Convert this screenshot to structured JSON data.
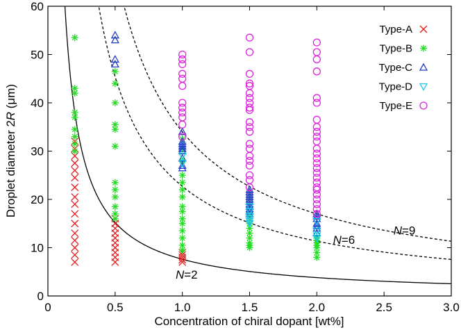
{
  "chart_data": {
    "type": "scatter",
    "title": "",
    "xlabel": "Concentration of chiral dopant [wt%]",
    "ylabel_parts": [
      "Droplet diameter 2",
      "R",
      " (μm)"
    ],
    "xlim": [
      0,
      3.0
    ],
    "ylim": [
      0,
      60
    ],
    "xticks": [
      0,
      0.5,
      1.0,
      1.5,
      2.0,
      2.5,
      3.0
    ],
    "xtick_labels": [
      "0",
      "0.5",
      "1.0",
      "1.5",
      "2.0",
      "2.5",
      "3.0"
    ],
    "yticks": [
      0,
      10,
      20,
      30,
      40,
      50,
      60
    ],
    "ytick_labels": [
      "0",
      "10",
      "20",
      "30",
      "40",
      "50",
      "60"
    ],
    "legend_position": "top-right",
    "series": [
      {
        "name": "Type-A",
        "marker": "x",
        "color": "#e41a1c",
        "points": [
          [
            0.2,
            7
          ],
          [
            0.2,
            8.5
          ],
          [
            0.2,
            10
          ],
          [
            0.2,
            11.5
          ],
          [
            0.2,
            13
          ],
          [
            0.2,
            15
          ],
          [
            0.2,
            17
          ],
          [
            0.2,
            19
          ],
          [
            0.2,
            20.5
          ],
          [
            0.2,
            22.5
          ],
          [
            0.2,
            24.5
          ],
          [
            0.2,
            26
          ],
          [
            0.2,
            27.5
          ],
          [
            0.2,
            29
          ],
          [
            0.2,
            30.5
          ],
          [
            0.2,
            32
          ],
          [
            0.5,
            7
          ],
          [
            0.5,
            8
          ],
          [
            0.5,
            9
          ],
          [
            0.5,
            10
          ],
          [
            0.5,
            11
          ],
          [
            0.5,
            12
          ],
          [
            0.5,
            13
          ],
          [
            0.5,
            14
          ],
          [
            0.5,
            15
          ],
          [
            0.5,
            16
          ],
          [
            1.0,
            7
          ],
          [
            1.0,
            7.5
          ],
          [
            1.0,
            8
          ],
          [
            1.0,
            8.5
          ],
          [
            1.0,
            9
          ]
        ]
      },
      {
        "name": "Type-B",
        "marker": "asterisk",
        "color": "#22dd22",
        "points": [
          [
            0.2,
            30
          ],
          [
            0.2,
            31.5
          ],
          [
            0.2,
            33
          ],
          [
            0.2,
            34.5
          ],
          [
            0.2,
            37
          ],
          [
            0.2,
            38
          ],
          [
            0.2,
            42
          ],
          [
            0.2,
            43
          ],
          [
            0.2,
            53.5
          ],
          [
            0.5,
            16
          ],
          [
            0.5,
            17
          ],
          [
            0.5,
            18.5
          ],
          [
            0.5,
            20.5
          ],
          [
            0.5,
            22
          ],
          [
            0.5,
            23.5
          ],
          [
            0.5,
            31
          ],
          [
            0.5,
            34.5
          ],
          [
            0.5,
            35.5
          ],
          [
            0.5,
            40
          ],
          [
            0.5,
            44
          ],
          [
            0.5,
            46.5
          ],
          [
            1.0,
            9.5
          ],
          [
            1.0,
            10.5
          ],
          [
            1.0,
            12
          ],
          [
            1.0,
            13.5
          ],
          [
            1.0,
            15
          ],
          [
            1.0,
            16
          ],
          [
            1.0,
            17.5
          ],
          [
            1.0,
            18.5
          ],
          [
            1.0,
            20.5
          ],
          [
            1.0,
            22
          ],
          [
            1.0,
            23.5
          ],
          [
            1.0,
            25
          ],
          [
            1.0,
            28
          ],
          [
            1.0,
            30.5
          ],
          [
            1.0,
            32.5
          ],
          [
            1.5,
            10
          ],
          [
            1.5,
            10.5
          ],
          [
            1.5,
            11
          ],
          [
            1.5,
            12
          ],
          [
            1.5,
            13
          ],
          [
            1.5,
            14
          ],
          [
            1.5,
            15
          ],
          [
            1.5,
            16
          ],
          [
            1.5,
            17
          ],
          [
            2.0,
            8
          ],
          [
            2.0,
            9
          ],
          [
            2.0,
            10
          ],
          [
            2.0,
            10.5
          ],
          [
            2.0,
            11
          ],
          [
            2.0,
            11.5
          ],
          [
            2.0,
            12
          ]
        ]
      },
      {
        "name": "Type-C",
        "marker": "triangle-up",
        "color": "#1f3fc4",
        "points": [
          [
            0.5,
            48
          ],
          [
            0.5,
            49
          ],
          [
            0.5,
            53
          ],
          [
            0.5,
            54
          ],
          [
            1.0,
            26.5
          ],
          [
            1.0,
            27
          ],
          [
            1.0,
            28.5
          ],
          [
            1.0,
            30
          ],
          [
            1.0,
            30.5
          ],
          [
            1.0,
            31
          ],
          [
            1.0,
            31.5
          ],
          [
            1.0,
            32
          ],
          [
            1.0,
            34
          ],
          [
            1.5,
            17
          ],
          [
            1.5,
            17.5
          ],
          [
            1.5,
            18
          ],
          [
            1.5,
            18.5
          ],
          [
            1.5,
            19
          ],
          [
            1.5,
            19.5
          ],
          [
            1.5,
            20
          ],
          [
            1.5,
            20.5
          ],
          [
            1.5,
            21
          ],
          [
            1.5,
            21.5
          ],
          [
            1.5,
            22
          ],
          [
            2.0,
            13
          ],
          [
            2.0,
            14
          ],
          [
            2.0,
            14.5
          ],
          [
            2.0,
            15
          ],
          [
            2.0,
            16
          ],
          [
            2.0,
            16.5
          ],
          [
            2.0,
            17
          ]
        ]
      },
      {
        "name": "Type-D",
        "marker": "triangle-down",
        "color": "#1ac8e8",
        "points": [
          [
            1.0,
            27.5
          ],
          [
            1.0,
            29
          ],
          [
            1.5,
            15
          ],
          [
            1.5,
            15.5
          ],
          [
            1.5,
            16
          ],
          [
            1.5,
            16.5
          ],
          [
            1.5,
            17.5
          ],
          [
            1.5,
            18.5
          ],
          [
            2.0,
            12
          ],
          [
            2.0,
            12.5
          ],
          [
            2.0,
            13.5
          ],
          [
            2.0,
            15.5
          ]
        ]
      },
      {
        "name": "Type-E",
        "marker": "circle",
        "color": "#dd22dd",
        "points": [
          [
            1.0,
            33
          ],
          [
            1.0,
            35.5
          ],
          [
            1.0,
            37
          ],
          [
            1.0,
            38
          ],
          [
            1.0,
            39
          ],
          [
            1.0,
            40
          ],
          [
            1.0,
            43.5
          ],
          [
            1.0,
            45
          ],
          [
            1.0,
            46
          ],
          [
            1.0,
            48
          ],
          [
            1.0,
            49
          ],
          [
            1.0,
            50
          ],
          [
            1.5,
            22.5
          ],
          [
            1.5,
            24
          ],
          [
            1.5,
            25
          ],
          [
            1.5,
            27
          ],
          [
            1.5,
            28
          ],
          [
            1.5,
            29
          ],
          [
            1.5,
            30.5
          ],
          [
            1.5,
            31.5
          ],
          [
            1.5,
            34
          ],
          [
            1.5,
            35
          ],
          [
            1.5,
            36
          ],
          [
            1.5,
            38.5
          ],
          [
            1.5,
            39
          ],
          [
            1.5,
            40
          ],
          [
            1.5,
            41
          ],
          [
            1.5,
            42
          ],
          [
            1.5,
            43.5
          ],
          [
            1.5,
            44
          ],
          [
            1.5,
            46
          ],
          [
            1.5,
            50.5
          ],
          [
            1.5,
            53.5
          ],
          [
            2.0,
            17
          ],
          [
            2.0,
            18
          ],
          [
            2.0,
            19
          ],
          [
            2.0,
            20
          ],
          [
            2.0,
            21
          ],
          [
            2.0,
            22
          ],
          [
            2.0,
            22.5
          ],
          [
            2.0,
            23.5
          ],
          [
            2.0,
            24.5
          ],
          [
            2.0,
            25.5
          ],
          [
            2.0,
            26.5
          ],
          [
            2.0,
            27.5
          ],
          [
            2.0,
            28.5
          ],
          [
            2.0,
            29.5
          ],
          [
            2.0,
            30.5
          ],
          [
            2.0,
            32
          ],
          [
            2.0,
            33
          ],
          [
            2.0,
            34
          ],
          [
            2.0,
            35
          ],
          [
            2.0,
            36.5
          ],
          [
            2.0,
            40
          ],
          [
            2.0,
            41
          ],
          [
            2.0,
            46.5
          ],
          [
            2.0,
            49
          ],
          [
            2.0,
            50.5
          ],
          [
            2.0,
            52.5
          ]
        ]
      }
    ],
    "curves": [
      {
        "name": "N=2",
        "label_prefix": "N",
        "label_suffix": "=2",
        "style": "solid",
        "k": 7.6,
        "label_at": [
          0.95,
          3.6
        ]
      },
      {
        "name": "N=6",
        "label_prefix": "N",
        "label_suffix": "=6",
        "style": "dashed",
        "k": 22.7,
        "label_at": [
          2.12,
          10.8
        ]
      },
      {
        "name": "N=9",
        "label_prefix": "N",
        "label_suffix": "=9",
        "style": "dashed",
        "k": 34.0,
        "label_at": [
          2.57,
          12.7
        ]
      }
    ]
  }
}
